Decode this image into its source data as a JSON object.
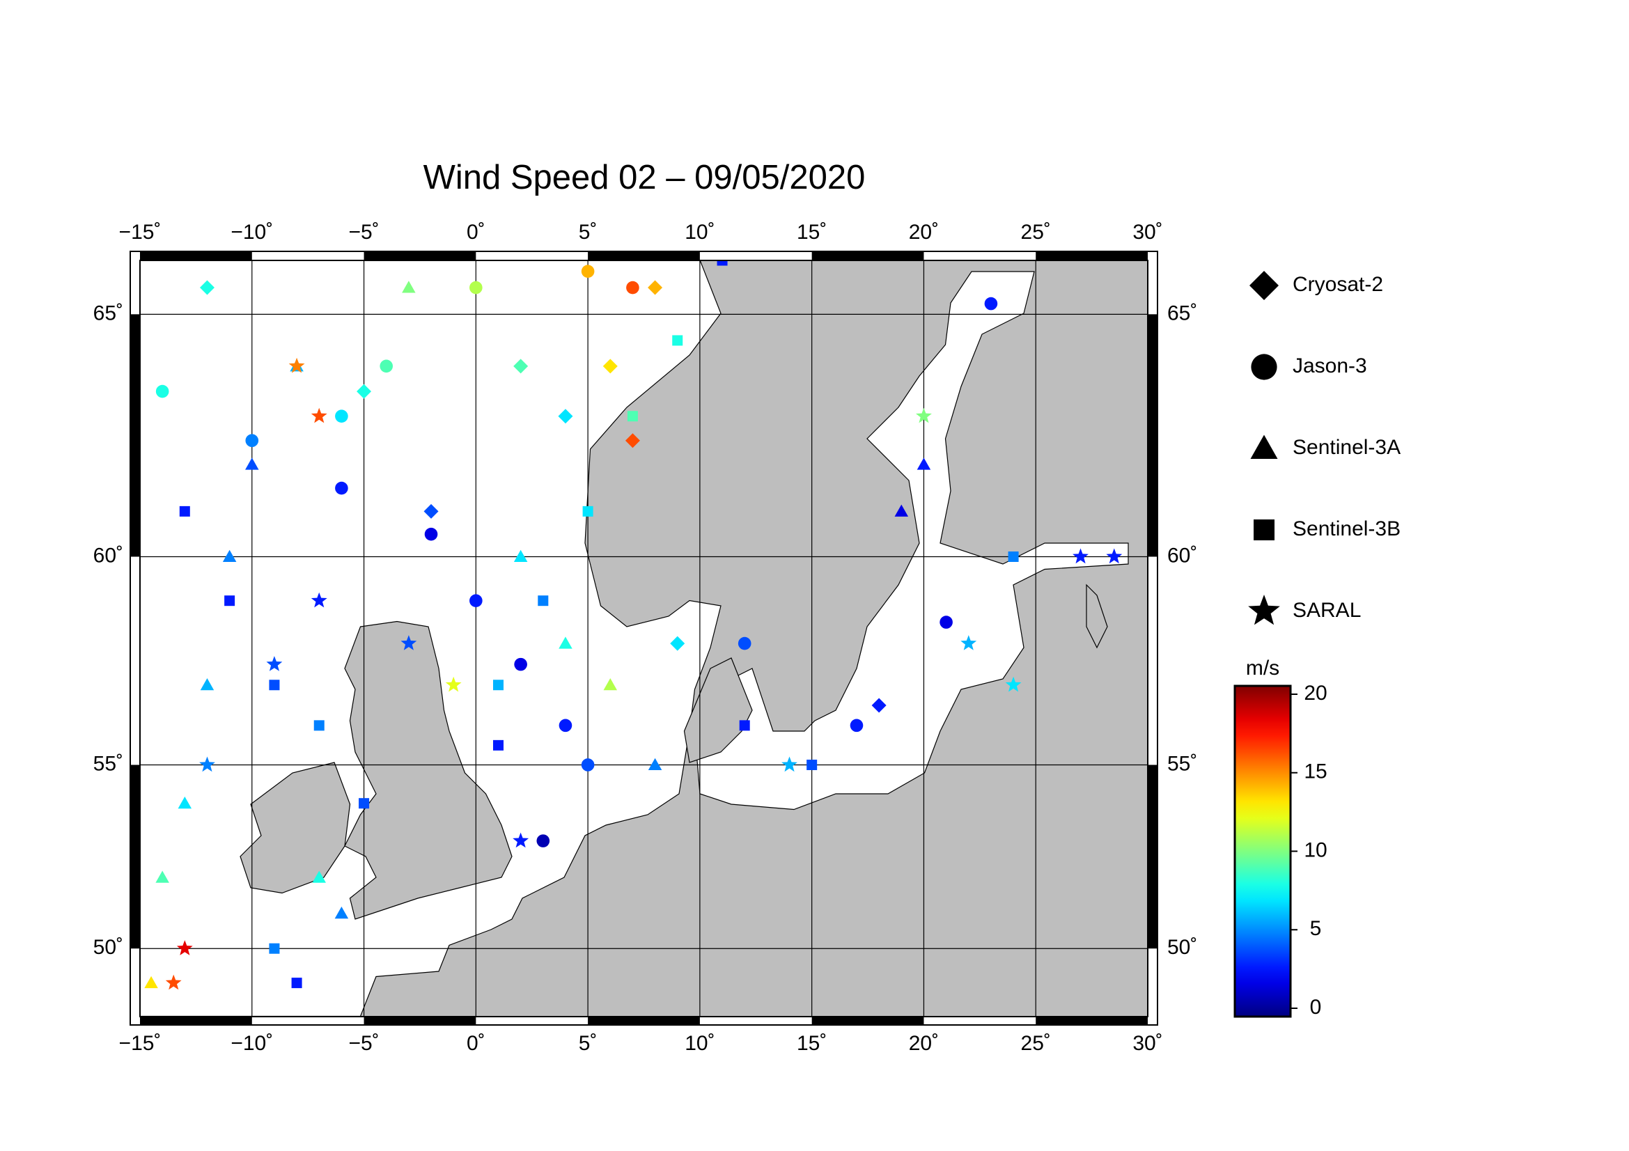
{
  "chart_data": {
    "type": "scatter",
    "title": "Wind Speed 02 – 09/05/2020",
    "projection": "mercator",
    "xlim": [
      -15,
      30
    ],
    "ylim": [
      48,
      66
    ],
    "xticks": [
      {
        "value": -15,
        "label": "−15˚"
      },
      {
        "value": -10,
        "label": "−10˚"
      },
      {
        "value": -5,
        "label": "−5˚"
      },
      {
        "value": 0,
        "label": "0˚"
      },
      {
        "value": 5,
        "label": "5˚"
      },
      {
        "value": 10,
        "label": "10˚"
      },
      {
        "value": 15,
        "label": "15˚"
      },
      {
        "value": 20,
        "label": "20˚"
      },
      {
        "value": 25,
        "label": "25˚"
      },
      {
        "value": 30,
        "label": "30˚"
      }
    ],
    "yticks": [
      {
        "value": 50,
        "label": "50˚"
      },
      {
        "value": 55,
        "label": "55˚"
      },
      {
        "value": 60,
        "label": "60˚"
      },
      {
        "value": 65,
        "label": "65˚"
      }
    ],
    "grid": true,
    "colormap": "jet",
    "clim": [
      0,
      20
    ],
    "cticks": [
      0,
      5,
      10,
      15,
      20
    ],
    "clabel": "m/s",
    "series": [
      {
        "name": "Cryosat-2",
        "marker": "diamond",
        "x": [
          -12,
          -5,
          2,
          4,
          6,
          7,
          8,
          -2,
          9,
          18
        ],
        "y": [
          65.5,
          63.5,
          64,
          63,
          64,
          62.5,
          65.5,
          61,
          58,
          56.5
        ],
        "values": [
          8,
          8,
          9,
          7,
          13,
          16,
          14,
          4,
          7,
          3
        ]
      },
      {
        "name": "Jason-3",
        "marker": "circle",
        "x": [
          -14,
          -10,
          -6,
          -2,
          0,
          2,
          4,
          5,
          3,
          -6,
          -4,
          0,
          5,
          7,
          23,
          21,
          17,
          12
        ],
        "y": [
          63.5,
          62.5,
          61.5,
          60.5,
          59,
          57.5,
          56,
          55,
          53,
          63,
          64,
          65.5,
          65.8,
          65.5,
          65.2,
          58.5,
          56,
          58
        ],
        "values": [
          8,
          5,
          3,
          2,
          3,
          2,
          3,
          4,
          1,
          7,
          9,
          11,
          14,
          16,
          3,
          2,
          3,
          4
        ]
      },
      {
        "name": "Sentinel-3A",
        "marker": "triangle",
        "x": [
          -14,
          -13,
          -12,
          -11,
          -10,
          -8,
          -3,
          -7,
          -6,
          2,
          4,
          6,
          8,
          19,
          20,
          -14.5
        ],
        "y": [
          52,
          54,
          57,
          60,
          62,
          64,
          65.5,
          52,
          51,
          60,
          58,
          57,
          55,
          61,
          62,
          49
        ],
        "values": [
          9,
          7,
          6,
          5,
          4,
          6,
          10,
          8,
          5,
          7,
          8,
          11,
          5,
          2,
          3,
          13
        ]
      },
      {
        "name": "Sentinel-3B",
        "marker": "square",
        "x": [
          -13,
          -11,
          -9,
          -7,
          -5,
          -9,
          -8,
          1,
          1,
          3,
          5,
          7,
          9,
          12,
          11,
          15,
          24
        ],
        "y": [
          61,
          59,
          57,
          56,
          54,
          50,
          49,
          55.5,
          57,
          59,
          61,
          63,
          64.5,
          56,
          66,
          55,
          60
        ],
        "values": [
          3,
          3,
          4,
          5,
          4,
          5,
          3,
          3,
          6,
          5,
          7,
          9,
          8,
          3,
          3,
          4,
          5
        ]
      },
      {
        "name": "SARAL",
        "marker": "star",
        "x": [
          -13,
          -13.5,
          -12,
          -9,
          -7,
          -8,
          -7,
          -3,
          -1,
          2,
          14,
          22,
          24,
          27,
          28.5,
          20
        ],
        "y": [
          50,
          49,
          55,
          57.5,
          59,
          64,
          63,
          58,
          57,
          53,
          55,
          58,
          57,
          60,
          60,
          63
        ],
        "values": [
          18,
          16,
          5,
          4,
          3,
          15,
          16,
          4,
          12,
          3,
          6,
          6,
          7,
          3,
          3,
          10
        ]
      }
    ]
  }
}
